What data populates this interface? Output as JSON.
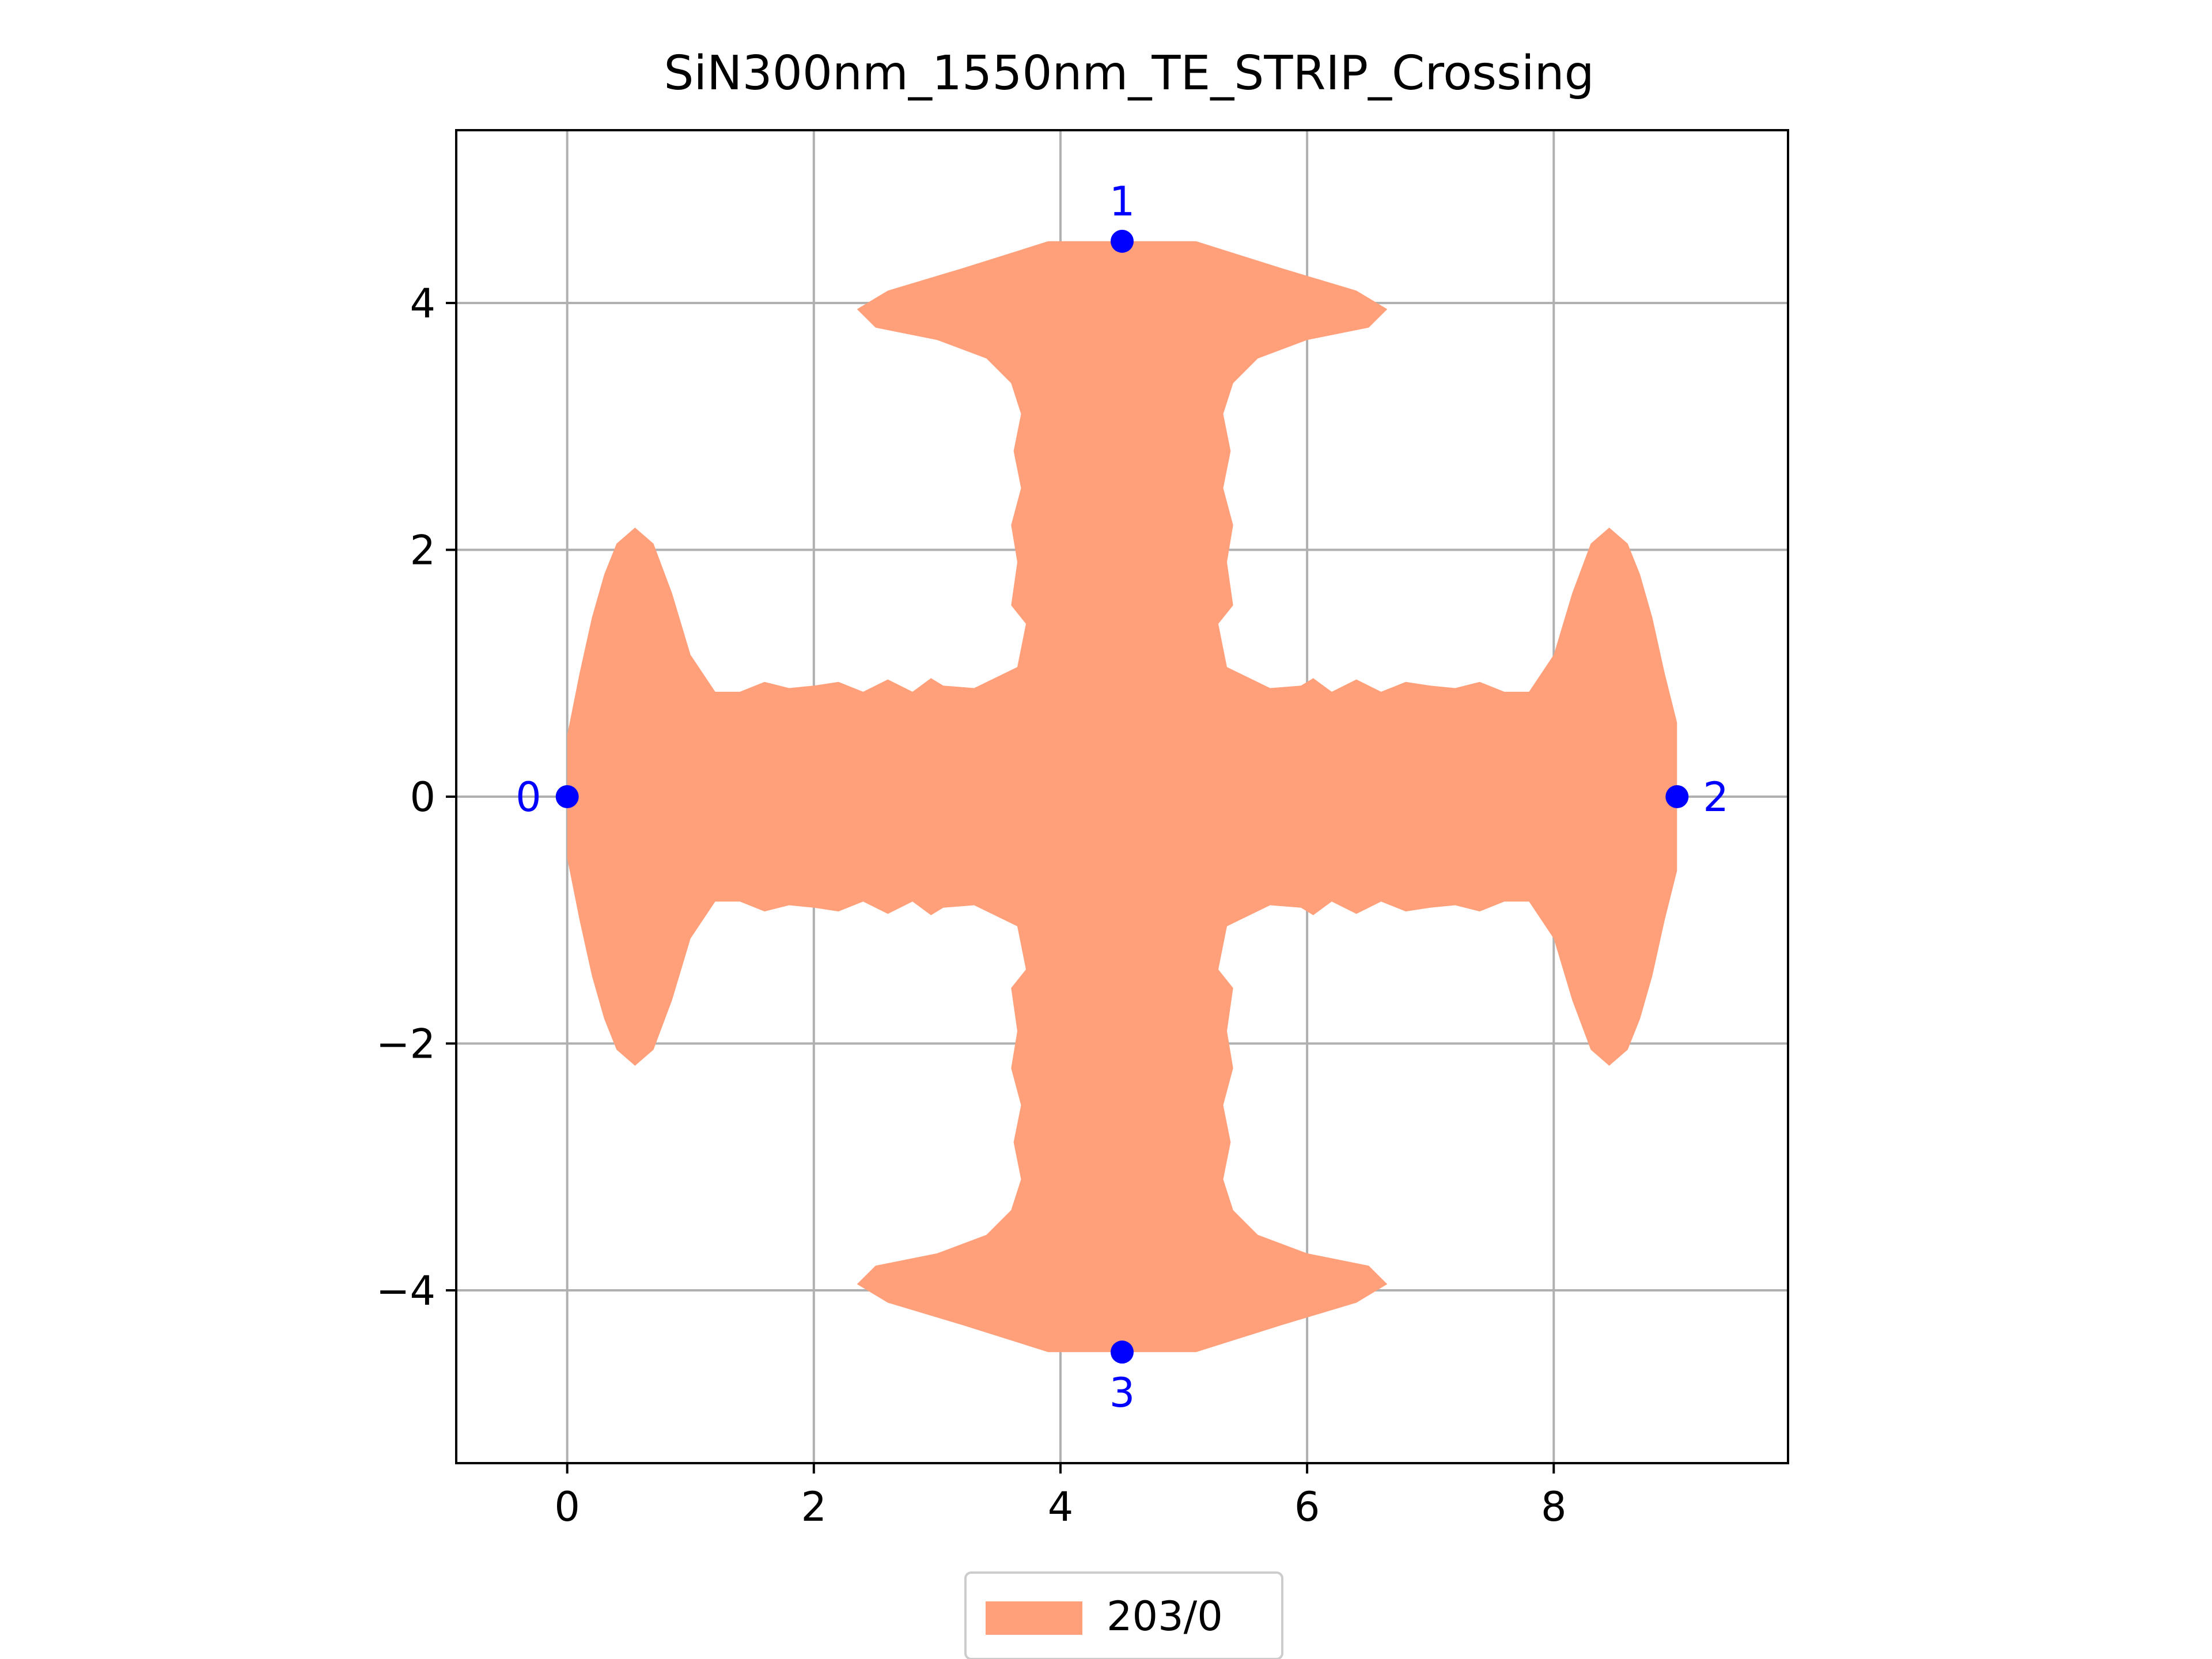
{
  "chart_data": {
    "type": "area",
    "title": "SiN300nm_1550nm_TE_STRIP_Crossing",
    "xlabel": "",
    "ylabel": "",
    "xlim": [
      -0.9,
      9.9
    ],
    "ylim": [
      -5.4,
      5.4
    ],
    "xticks": [
      0,
      2,
      4,
      6,
      8
    ],
    "yticks": [
      -4,
      -2,
      0,
      2,
      4
    ],
    "xtick_labels": [
      "0",
      "2",
      "4",
      "6",
      "8"
    ],
    "ytick_labels": [
      "−4",
      "−2",
      "0",
      "2",
      "4"
    ],
    "grid": true,
    "legend_position": "below-center",
    "colors": {
      "fill": "#ffa07a",
      "port": "#0000ff",
      "grid": "#b0b0b0",
      "axes": "#000000"
    },
    "series": [
      {
        "name": "203/0",
        "points": [
          [
            0.0,
            0.5
          ],
          [
            0.1,
            1.0
          ],
          [
            0.2,
            1.45
          ],
          [
            0.3,
            1.8
          ],
          [
            0.4,
            2.05
          ],
          [
            0.55,
            2.18
          ],
          [
            0.7,
            2.05
          ],
          [
            0.85,
            1.65
          ],
          [
            1.0,
            1.15
          ],
          [
            1.2,
            0.85
          ],
          [
            1.4,
            0.85
          ],
          [
            1.6,
            0.93
          ],
          [
            1.8,
            0.88
          ],
          [
            2.0,
            0.9
          ],
          [
            2.2,
            0.93
          ],
          [
            2.4,
            0.85
          ],
          [
            2.6,
            0.95
          ],
          [
            2.8,
            0.85
          ],
          [
            2.95,
            0.96
          ],
          [
            3.05,
            0.9
          ],
          [
            3.3,
            0.88
          ],
          [
            3.65,
            1.05
          ],
          [
            3.72,
            1.4
          ],
          [
            3.6,
            1.55
          ],
          [
            3.65,
            1.9
          ],
          [
            3.6,
            2.2
          ],
          [
            3.68,
            2.5
          ],
          [
            3.62,
            2.8
          ],
          [
            3.68,
            3.1
          ],
          [
            3.6,
            3.35
          ],
          [
            3.4,
            3.55
          ],
          [
            3.0,
            3.7
          ],
          [
            2.5,
            3.8
          ],
          [
            2.35,
            3.95
          ],
          [
            2.6,
            4.1
          ],
          [
            3.2,
            4.28
          ],
          [
            3.9,
            4.5
          ],
          [
            5.1,
            4.5
          ],
          [
            5.8,
            4.28
          ],
          [
            6.4,
            4.1
          ],
          [
            6.65,
            3.95
          ],
          [
            6.5,
            3.8
          ],
          [
            6.0,
            3.7
          ],
          [
            5.6,
            3.55
          ],
          [
            5.4,
            3.35
          ],
          [
            5.32,
            3.1
          ],
          [
            5.38,
            2.8
          ],
          [
            5.32,
            2.5
          ],
          [
            5.4,
            2.2
          ],
          [
            5.35,
            1.9
          ],
          [
            5.4,
            1.55
          ],
          [
            5.28,
            1.4
          ],
          [
            5.35,
            1.05
          ],
          [
            5.7,
            0.88
          ],
          [
            5.95,
            0.9
          ],
          [
            6.05,
            0.96
          ],
          [
            6.2,
            0.85
          ],
          [
            6.4,
            0.95
          ],
          [
            6.6,
            0.85
          ],
          [
            6.8,
            0.93
          ],
          [
            7.0,
            0.9
          ],
          [
            7.2,
            0.88
          ],
          [
            7.4,
            0.93
          ],
          [
            7.6,
            0.85
          ],
          [
            7.8,
            0.85
          ],
          [
            8.0,
            1.15
          ],
          [
            8.15,
            1.65
          ],
          [
            8.3,
            2.05
          ],
          [
            8.45,
            2.18
          ],
          [
            8.6,
            2.05
          ],
          [
            8.7,
            1.8
          ],
          [
            8.8,
            1.45
          ],
          [
            8.9,
            1.0
          ],
          [
            9.0,
            0.6
          ]
        ]
      }
    ],
    "ports": [
      {
        "label": "0",
        "x": 0.0,
        "y": 0.0,
        "label_side": "left"
      },
      {
        "label": "1",
        "x": 4.5,
        "y": 4.5,
        "label_side": "above"
      },
      {
        "label": "2",
        "x": 9.0,
        "y": 0.0,
        "label_side": "right"
      },
      {
        "label": "3",
        "x": 4.5,
        "y": -4.5,
        "label_side": "below"
      }
    ]
  }
}
